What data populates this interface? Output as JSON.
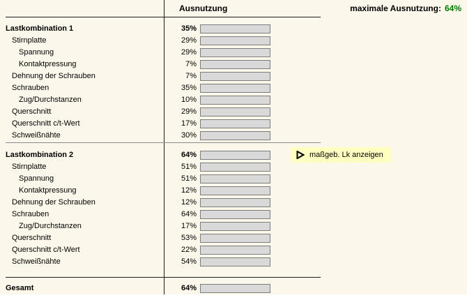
{
  "header": {
    "column_label": "Ausnutzung",
    "max_label": "maximale Ausnutzung:",
    "max_value": "64%"
  },
  "sections": [
    {
      "title": "Lastkombination 1",
      "value": 35,
      "rows": [
        {
          "label": "Stirnplatte",
          "indent": 1,
          "value": 29
        },
        {
          "label": "Spannung",
          "indent": 2,
          "value": 29
        },
        {
          "label": "Kontaktpressung",
          "indent": 2,
          "value": 7
        },
        {
          "label": "Dehnung der Schrauben",
          "indent": 1,
          "value": 7
        },
        {
          "label": "Schrauben",
          "indent": 1,
          "value": 35
        },
        {
          "label": "Zug/Durchstanzen",
          "indent": 2,
          "value": 10
        },
        {
          "label": "Querschnitt",
          "indent": 1,
          "value": 29
        },
        {
          "label": "Querschnitt c/t-Wert",
          "indent": 1,
          "value": 17
        },
        {
          "label": "Schweißnähte",
          "indent": 1,
          "value": 30
        }
      ]
    },
    {
      "title": "Lastkombination 2",
      "value": 64,
      "rows": [
        {
          "label": "Stirnplatte",
          "indent": 1,
          "value": 51
        },
        {
          "label": "Spannung",
          "indent": 2,
          "value": 51
        },
        {
          "label": "Kontaktpressung",
          "indent": 2,
          "value": 12
        },
        {
          "label": "Dehnung der Schrauben",
          "indent": 1,
          "value": 12
        },
        {
          "label": "Schrauben",
          "indent": 1,
          "value": 64
        },
        {
          "label": "Zug/Durchstanzen",
          "indent": 2,
          "value": 17
        },
        {
          "label": "Querschnitt",
          "indent": 1,
          "value": 53
        },
        {
          "label": "Querschnitt c/t-Wert",
          "indent": 1,
          "value": 22
        },
        {
          "label": "Schweißnähte",
          "indent": 1,
          "value": 54
        }
      ]
    }
  ],
  "button": {
    "label": "maßgeb. Lk anzeigen",
    "icon": "play-triangle"
  },
  "total": {
    "label": "Gesamt",
    "value": 64
  },
  "colors": {
    "panel_bg": "#fcf7eb",
    "accent_green_text": "#007a00",
    "bar_fill_mid": "#00d800",
    "bar_track": "#d9d9d9",
    "button_bg": "#ffffc2"
  }
}
